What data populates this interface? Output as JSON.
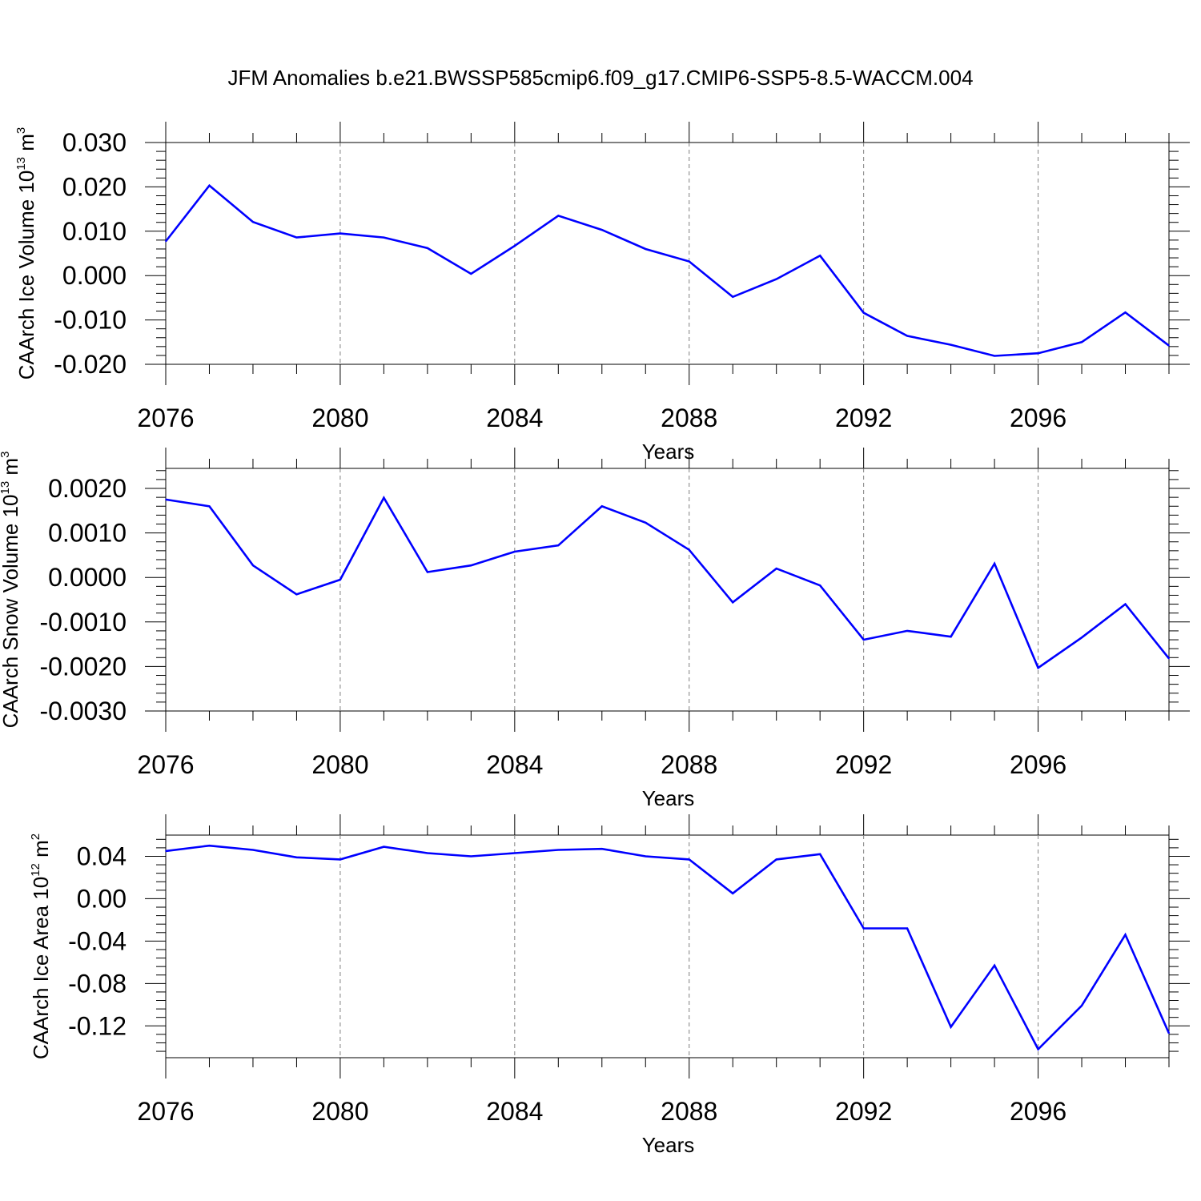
{
  "title": "JFM Anomalies b.e21.BWSSP585cmip6.f09_g17.CMIP6-SSP5-8.5-WACCM.004",
  "colors": {
    "line": "#0000ff",
    "axis": "#000000",
    "grid": "#808080",
    "background": "#ffffff"
  },
  "chart_data": [
    {
      "type": "line",
      "ylabel": {
        "main": "CAArch Ice Volume 10",
        "exponent": "13",
        "unit": " m",
        "unit_exponent": "3"
      },
      "xlabel": "Years",
      "xlim": [
        2076,
        2099
      ],
      "ylim": [
        -0.02,
        0.03
      ],
      "x_ticks": [
        2076,
        2080,
        2084,
        2088,
        2092,
        2096
      ],
      "x_tick_labels": [
        "2076",
        "2080",
        "2084",
        "2088",
        "2092",
        "2096"
      ],
      "y_ticks": [
        0.03,
        0.02,
        0.01,
        0.0,
        -0.01,
        -0.02
      ],
      "y_tick_labels": [
        "0.030",
        "0.020",
        "0.010",
        "0.000",
        "-0.010",
        "-0.020"
      ],
      "grid": "vertical dashed at labeled years",
      "series": [
        {
          "name": "CAArch Ice Volume",
          "x": [
            2076,
            2077,
            2078,
            2079,
            2080,
            2081,
            2082,
            2083,
            2084,
            2085,
            2086,
            2087,
            2088,
            2089,
            2090,
            2091,
            2092,
            2093,
            2094,
            2095,
            2096,
            2097,
            2098,
            2099
          ],
          "values": [
            0.0077,
            0.0203,
            0.0121,
            0.0086,
            0.0095,
            0.0086,
            0.0062,
            0.0004,
            0.0067,
            0.0135,
            0.0103,
            0.006,
            0.0032,
            -0.0048,
            -0.0008,
            0.0045,
            -0.0084,
            -0.0136,
            -0.0156,
            -0.0181,
            -0.0175,
            -0.015,
            -0.0083,
            -0.0158
          ]
        }
      ]
    },
    {
      "type": "line",
      "ylabel": {
        "main": "CAArch Snow Volume 10",
        "exponent": "13",
        "unit": " m",
        "unit_exponent": "3"
      },
      "xlabel": "Years",
      "xlim": [
        2076,
        2099
      ],
      "ylim": [
        -0.003,
        0.00245
      ],
      "x_ticks": [
        2076,
        2080,
        2084,
        2088,
        2092,
        2096
      ],
      "x_tick_labels": [
        "2076",
        "2080",
        "2084",
        "2088",
        "2092",
        "2096"
      ],
      "y_ticks": [
        0.002,
        0.001,
        0.0,
        -0.001,
        -0.002,
        -0.003
      ],
      "y_tick_labels": [
        "0.0020",
        "0.0010",
        "0.0000",
        "-0.0010",
        "-0.0020",
        "-0.0030"
      ],
      "grid": "vertical dashed at labeled years",
      "series": [
        {
          "name": "CAArch Snow Volume",
          "x": [
            2076,
            2077,
            2078,
            2079,
            2080,
            2081,
            2082,
            2083,
            2084,
            2085,
            2086,
            2087,
            2088,
            2089,
            2090,
            2091,
            2092,
            2093,
            2094,
            2095,
            2096,
            2097,
            2098,
            2099
          ],
          "values": [
            0.00175,
            0.0016,
            0.00027,
            -0.00038,
            -5e-05,
            0.00179,
            0.00012,
            0.00027,
            0.00058,
            0.00072,
            0.0016,
            0.00123,
            0.00062,
            -0.00056,
            0.0002,
            -0.00018,
            -0.0014,
            -0.0012,
            -0.00133,
            0.00031,
            -0.00203,
            -0.00135,
            -0.0006,
            -0.00182
          ]
        }
      ]
    },
    {
      "type": "line",
      "ylabel": {
        "main": "CAArch Ice Area 10",
        "exponent": "12",
        "unit": " m",
        "unit_exponent": "2"
      },
      "xlabel": "Years",
      "xlim": [
        2076,
        2099
      ],
      "ylim": [
        -0.15,
        0.06
      ],
      "x_ticks": [
        2076,
        2080,
        2084,
        2088,
        2092,
        2096
      ],
      "x_tick_labels": [
        "2076",
        "2080",
        "2084",
        "2088",
        "2092",
        "2096"
      ],
      "y_ticks": [
        0.04,
        0.0,
        -0.04,
        -0.08,
        -0.12
      ],
      "y_tick_labels": [
        "0.04",
        "0.00",
        "-0.04",
        "-0.08",
        "-0.12"
      ],
      "grid": "vertical dashed at labeled years",
      "series": [
        {
          "name": "CAArch Ice Area",
          "x": [
            2076,
            2077,
            2078,
            2079,
            2080,
            2081,
            2082,
            2083,
            2084,
            2085,
            2086,
            2087,
            2088,
            2089,
            2090,
            2091,
            2092,
            2093,
            2094,
            2095,
            2096,
            2097,
            2098,
            2099
          ],
          "values": [
            0.045,
            0.05,
            0.046,
            0.039,
            0.037,
            0.049,
            0.043,
            0.04,
            0.043,
            0.046,
            0.047,
            0.04,
            0.037,
            0.005,
            0.037,
            0.042,
            -0.028,
            -0.028,
            -0.121,
            -0.063,
            -0.142,
            -0.101,
            -0.034,
            -0.127
          ]
        }
      ]
    }
  ]
}
